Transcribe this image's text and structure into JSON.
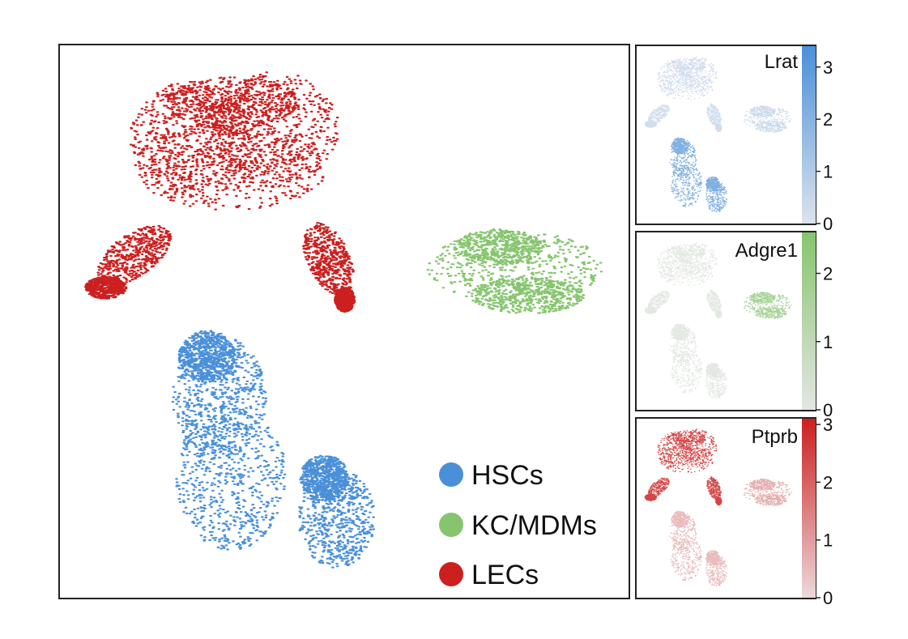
{
  "chart_data": [
    {
      "type": "scatter",
      "legend": {
        "placement": "bottom-right",
        "entries": [
          {
            "label": "HSCs",
            "color": "#4a90d9"
          },
          {
            "label": "KC/MDMs",
            "color": "#86c56e"
          },
          {
            "label": "LECs",
            "color": "#cc1f1f"
          }
        ]
      },
      "series": [
        {
          "name": "HSCs",
          "color": "#4a90d9"
        },
        {
          "name": "KC/MDMs",
          "color": "#86c56e"
        },
        {
          "name": "LECs",
          "color": "#cc1f1f"
        }
      ],
      "grid": false
    },
    {
      "type": "scatter",
      "title": "Lrat",
      "color": "#4a90d9",
      "colorbar": {
        "range": [
          0,
          3.4
        ],
        "ticks": [
          "0",
          "1",
          "2",
          "3"
        ],
        "tick_values": [
          0,
          1,
          2,
          3
        ]
      },
      "expression": {
        "HSCs": 2.5,
        "KC/MDMs": 0.5,
        "LECs": 0.4
      }
    },
    {
      "type": "scatter",
      "title": "Adgre1",
      "color": "#86c56e",
      "colorbar": {
        "range": [
          0,
          2.6
        ],
        "ticks": [
          "0",
          "1",
          "2"
        ],
        "tick_values": [
          0,
          1,
          2
        ]
      },
      "expression": {
        "HSCs": 0.1,
        "KC/MDMs": 1.9,
        "LECs": 0.1
      }
    },
    {
      "type": "scatter",
      "title": "Ptprb",
      "color": "#cc1f1f",
      "colorbar": {
        "range": [
          0,
          3.1
        ],
        "ticks": [
          "0",
          "1",
          "2",
          "3"
        ],
        "tick_values": [
          0,
          1,
          2,
          3
        ]
      },
      "expression": {
        "HSCs": 0.6,
        "KC/MDMs": 0.9,
        "LECs": 2.8
      }
    }
  ]
}
